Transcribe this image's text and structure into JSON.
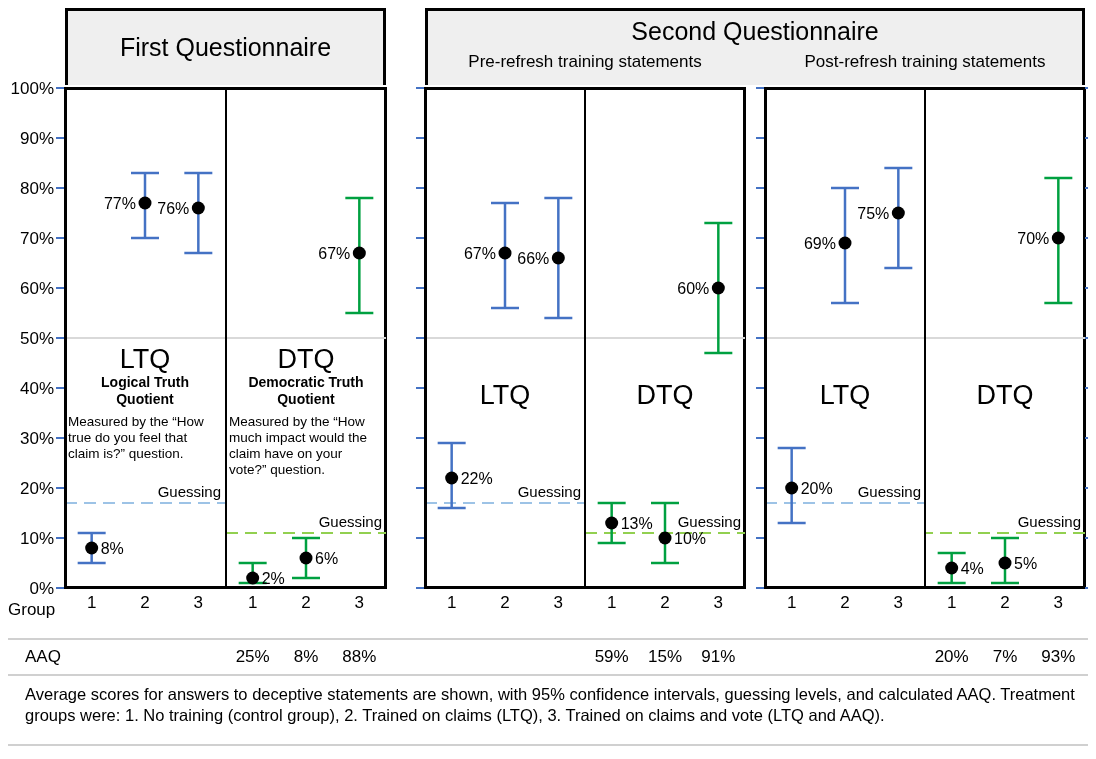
{
  "chart_data": [
    {
      "type": "other",
      "title": "First Questionnaire"
    },
    {
      "type": "other",
      "title": "Second Questionnaire"
    },
    {
      "type": "scatter",
      "xlabel": "Group",
      "categories": [
        "1",
        "2",
        "3"
      ],
      "marker": "circle",
      "ylim": [
        0,
        100
      ],
      "yticks": [
        {
          "value": 0,
          "label": "0%"
        },
        {
          "value": 10,
          "label": "10%"
        },
        {
          "value": 20,
          "label": "20%"
        },
        {
          "value": 30,
          "label": "30%"
        },
        {
          "value": 40,
          "label": "40%"
        },
        {
          "value": 50,
          "label": "50%"
        },
        {
          "value": 60,
          "label": "60%"
        },
        {
          "value": 70,
          "label": "70%"
        },
        {
          "value": 80,
          "label": "80%"
        },
        {
          "value": 90,
          "label": "90%"
        },
        {
          "value": 100,
          "label": "100%"
        }
      ],
      "series": [
        {
          "color": "#000000",
          "values": [
            8,
            77,
            76
          ],
          "errors": [
            [
              5,
              11
            ],
            [
              70,
              83
            ],
            [
              67,
              83
            ]
          ],
          "value_labels": [
            "8%",
            "77%",
            "76%"
          ]
        }
      ],
      "ref_lines": [
        {
          "axis": "y",
          "value": 50,
          "color": "#d9d9d9",
          "line_style": "solid"
        },
        {
          "axis": "y",
          "value": 17,
          "label": "Guessing",
          "color": "#9dc3e6",
          "line_style": "dashed"
        }
      ],
      "annotations": [
        "LTQ",
        "Logical Truth Quotient",
        "Measured by the “How true do you feel that claim is?” question."
      ]
    },
    {
      "type": "scatter",
      "categories": [
        "1",
        "2",
        "3"
      ],
      "marker": "circle",
      "tick_labels": "x",
      "ylim": [
        0,
        100
      ],
      "yticks": [
        0,
        10,
        20,
        30,
        40,
        50,
        60,
        70,
        80,
        90,
        100
      ],
      "series": [
        {
          "color": "#000000",
          "values": [
            2,
            6,
            67
          ],
          "errors": [
            [
              1,
              5
            ],
            [
              2,
              10
            ],
            [
              55,
              78
            ]
          ],
          "value_labels": [
            "2%",
            "6%",
            "67%"
          ]
        }
      ],
      "ref_lines": [
        {
          "axis": "y",
          "value": 50,
          "color": "#d9d9d9",
          "line_style": "solid"
        },
        {
          "axis": "y",
          "value": 11,
          "label": "Guessing",
          "color": "#92d050",
          "line_style": "dashed"
        }
      ],
      "annotations": [
        "DTQ",
        "Democratic Truth Quotient",
        "Measured by the “How much impact would the claim have on your vote?” question."
      ]
    },
    {
      "type": "scatter",
      "subtitle": "Pre-refresh training statements",
      "categories": [
        "1",
        "2",
        "3"
      ],
      "marker": "circle",
      "tick_labels": "x",
      "ylim": [
        0,
        100
      ],
      "yticks": [
        0,
        10,
        20,
        30,
        40,
        50,
        60,
        70,
        80,
        90,
        100
      ],
      "series": [
        {
          "color": "#000000",
          "values": [
            22,
            67,
            66
          ],
          "errors": [
            [
              16,
              29
            ],
            [
              56,
              77
            ],
            [
              54,
              78
            ]
          ],
          "value_labels": [
            "22%",
            "67%",
            "66%"
          ]
        }
      ],
      "ref_lines": [
        {
          "axis": "y",
          "value": 50,
          "color": "#d9d9d9",
          "line_style": "solid"
        },
        {
          "axis": "y",
          "value": 17,
          "label": "Guessing",
          "color": "#9dc3e6",
          "line_style": "dashed"
        }
      ],
      "annotations": [
        "LTQ"
      ]
    },
    {
      "type": "scatter",
      "categories": [
        "1",
        "2",
        "3"
      ],
      "marker": "circle",
      "tick_labels": "x",
      "ylim": [
        0,
        100
      ],
      "yticks": [
        0,
        10,
        20,
        30,
        40,
        50,
        60,
        70,
        80,
        90,
        100
      ],
      "series": [
        {
          "color": "#000000",
          "values": [
            13,
            10,
            60
          ],
          "errors": [
            [
              9,
              17
            ],
            [
              5,
              17
            ],
            [
              47,
              73
            ]
          ],
          "value_labels": [
            "13%",
            "10%",
            "60%"
          ]
        }
      ],
      "ref_lines": [
        {
          "axis": "y",
          "value": 50,
          "color": "#d9d9d9",
          "line_style": "solid"
        },
        {
          "axis": "y",
          "value": 11,
          "label": "Guessing",
          "color": "#92d050",
          "line_style": "dashed"
        }
      ],
      "annotations": [
        "DTQ"
      ]
    },
    {
      "type": "scatter",
      "subtitle": "Post-refresh training statements",
      "categories": [
        "1",
        "2",
        "3"
      ],
      "marker": "circle",
      "tick_labels": "x",
      "ylim": [
        0,
        100
      ],
      "yticks": [
        0,
        10,
        20,
        30,
        40,
        50,
        60,
        70,
        80,
        90,
        100
      ],
      "series": [
        {
          "color": "#000000",
          "values": [
            20,
            69,
            75
          ],
          "errors": [
            [
              13,
              28
            ],
            [
              57,
              80
            ],
            [
              64,
              84
            ]
          ],
          "value_labels": [
            "20%",
            "69%",
            "75%"
          ]
        }
      ],
      "ref_lines": [
        {
          "axis": "y",
          "value": 50,
          "color": "#d9d9d9",
          "line_style": "solid"
        },
        {
          "axis": "y",
          "value": 17,
          "label": "Guessing",
          "color": "#9dc3e6",
          "line_style": "dashed"
        }
      ],
      "annotations": [
        "LTQ"
      ]
    },
    {
      "type": "scatter",
      "categories": [
        "1",
        "2",
        "3"
      ],
      "marker": "circle",
      "tick_labels": "x",
      "ylim": [
        0,
        100
      ],
      "yticks": [
        0,
        10,
        20,
        30,
        40,
        50,
        60,
        70,
        80,
        90,
        100
      ],
      "series": [
        {
          "color": "#000000",
          "values": [
            4,
            5,
            70
          ],
          "errors": [
            [
              1,
              7
            ],
            [
              1,
              10
            ],
            [
              57,
              82
            ]
          ],
          "value_labels": [
            "4%",
            "5%",
            "70%"
          ]
        }
      ],
      "ref_lines": [
        {
          "axis": "y",
          "value": 50,
          "color": "#d9d9d9",
          "line_style": "solid"
        },
        {
          "axis": "y",
          "value": 11,
          "label": "Guessing",
          "color": "#92d050",
          "line_style": "dashed"
        }
      ],
      "annotations": [
        "DTQ"
      ]
    },
    {
      "type": "other",
      "annotations": [
        "AAQ",
        "25%",
        "8%",
        "88%",
        "59%",
        "15%",
        "91%",
        "20%",
        "7%",
        "93%"
      ]
    },
    {
      "type": "other",
      "annotations": [
        "Average scores for answers to deceptive statements are shown, with 95% confidence intervals, guessing levels, and calculated AAQ. Treatment groups were: 1. No training (control group), 2. Trained on claims (LTQ), 3. Trained on claims and vote (LTQ and AAQ)."
      ]
    }
  ]
}
